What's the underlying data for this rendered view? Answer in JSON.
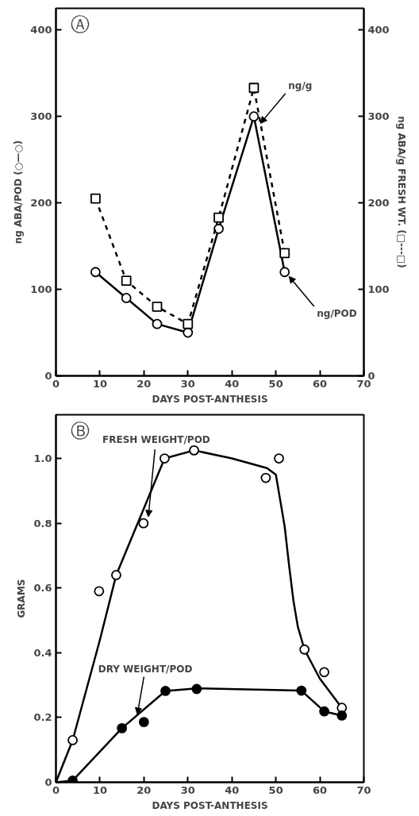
{
  "chart_data": [
    {
      "type": "line",
      "xlabel": "DAYS POST-ANTHESIS",
      "ylabel": "ng ABA/POD (○—○)",
      "y2label": "ng ABA/g FRESH WT. (□---□)",
      "x": [
        9,
        16,
        23,
        30,
        37,
        45,
        52
      ],
      "series": [
        {
          "color": "#000000",
          "marker": "circle",
          "line_style": "solid",
          "values": [
            120,
            90,
            60,
            50,
            170,
            300,
            120
          ]
        },
        {
          "color": "#000000",
          "marker": "square",
          "line_style": "dashed",
          "values": [
            205,
            110,
            80,
            60,
            183,
            333,
            142
          ]
        }
      ],
      "xlim": [
        0,
        70
      ],
      "xticks": [
        0,
        10,
        20,
        30,
        40,
        50,
        60,
        70
      ],
      "ylim": [
        0,
        425
      ],
      "yticks": [
        0,
        100,
        200,
        300,
        400
      ],
      "y2lim": [
        0,
        425
      ],
      "y2ticks": [
        0,
        100,
        200,
        300,
        400
      ],
      "grid": false,
      "annotations": [
        "Ⓐ",
        {
          "text": "ng/g",
          "x": 46.5,
          "y": 292
        },
        {
          "text": "ng/POD",
          "x": 53,
          "y": 115
        }
      ]
    },
    {
      "type": "scatter",
      "xlabel": "DAYS POST-ANTHESIS",
      "ylabel": "GRAMS",
      "series": [
        {
          "type": "scatter",
          "color": "#ffffff",
          "marker": "circle",
          "x": [
            3.8,
            9.8,
            13.7,
            19.9,
            24.7,
            31.4,
            47.7,
            50.7,
            56.5,
            61,
            65
          ],
          "values": [
            0.13,
            0.59,
            0.64,
            0.8,
            1.0,
            1.025,
            0.94,
            1.0,
            0.41,
            0.34,
            0.23
          ]
        },
        {
          "type": "line",
          "color": "#000000",
          "marker": "none",
          "line_style": "solid",
          "x": [
            0,
            3.8,
            10,
            13.7,
            24.7,
            31.4,
            40,
            48,
            50,
            51,
            52,
            53,
            54,
            55,
            56.5,
            60,
            65
          ],
          "values": [
            0,
            0.13,
            0.44,
            0.64,
            1.0,
            1.025,
            1.0,
            0.97,
            0.95,
            0.87,
            0.79,
            0.67,
            0.56,
            0.48,
            0.41,
            0.32,
            0.23
          ]
        },
        {
          "type": "scatter",
          "color": "#000000",
          "marker": "circle",
          "x": [
            3.8,
            15,
            20,
            24.9,
            32,
            55.8,
            61,
            65
          ],
          "values": [
            0.005,
            0.167,
            0.186,
            0.282,
            0.288,
            0.283,
            0.219,
            0.206
          ]
        },
        {
          "type": "line",
          "color": "#000000",
          "marker": "none",
          "line_style": "solid",
          "x": [
            0,
            3.8,
            15,
            24.9,
            32,
            55.8,
            61,
            65
          ],
          "values": [
            0,
            0.005,
            0.167,
            0.282,
            0.29,
            0.283,
            0.219,
            0.206
          ]
        }
      ],
      "xlim": [
        0,
        70
      ],
      "xticks": [
        0,
        10,
        20,
        30,
        40,
        50,
        60,
        70
      ],
      "ylim": [
        0,
        1.135
      ],
      "yticks": [
        0,
        {
          "value": 0.2,
          "label": "0.2"
        },
        {
          "value": 0.4,
          "label": "0.4"
        },
        {
          "value": 0.6,
          "label": "0.6"
        },
        {
          "value": 0.8,
          "label": "0.8"
        },
        {
          "value": 1.0,
          "label": "1.0"
        }
      ],
      "grid": false,
      "annotations": [
        "Ⓑ",
        {
          "text": "FRESH WEIGHT/POD",
          "x": 21,
          "y": 0.82
        },
        {
          "text": "DRY WEIGHT/POD",
          "x": 18.5,
          "y": 0.21
        }
      ]
    }
  ]
}
